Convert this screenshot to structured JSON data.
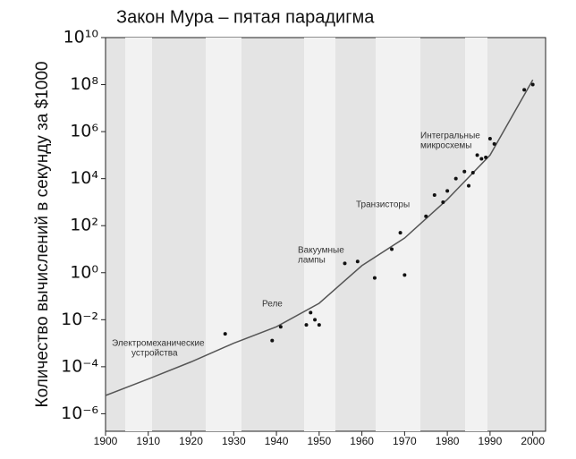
{
  "chart_data": {
    "type": "scatter",
    "title": "Закон Мура – пятая парадигма",
    "y_label": "Количество вычислений в секунду за $1000",
    "log_y": true,
    "xlim": [
      1900,
      2003
    ],
    "ylim": [
      1.8e-07,
      10000000000.0
    ],
    "xticks": [
      1900,
      1910,
      1920,
      1930,
      1940,
      1950,
      1960,
      1970,
      1980,
      1990,
      2000
    ],
    "yticks": [
      {
        "value": 10000000000.0,
        "label": "10¹⁰"
      },
      {
        "value": 100000000.0,
        "label": "10⁸"
      },
      {
        "value": 1000000.0,
        "label": "10⁶"
      },
      {
        "value": 10000.0,
        "label": "10⁴"
      },
      {
        "value": 100,
        "label": "10²"
      },
      {
        "value": 1,
        "label": "10⁰"
      },
      {
        "value": 0.01,
        "label": "10⁻²"
      },
      {
        "value": 0.0001,
        "label": "10⁻⁴"
      },
      {
        "value": 1e-06,
        "label": "10⁻⁶"
      }
    ],
    "color": "#111111",
    "x": [
      1928,
      1939,
      1941,
      1947,
      1948,
      1949,
      1950,
      1956,
      1959,
      1963,
      1967,
      1969,
      1970,
      1975,
      1977,
      1979,
      1980,
      1982,
      1984,
      1985,
      1986,
      1987,
      1988,
      1989,
      1990,
      1991,
      1998,
      2000
    ],
    "values": [
      0.0025,
      0.0013,
      0.005,
      0.006,
      0.02,
      0.01,
      0.006,
      2.5,
      3,
      0.6,
      10,
      50,
      0.8,
      250,
      2000,
      1000,
      3000,
      10000,
      20000,
      5000,
      18000,
      100000,
      70000,
      80000,
      500000,
      300000,
      60000000.0,
      100000000.0
    ],
    "trend": {
      "color": "#555555",
      "x": [
        1900,
        1910,
        1920,
        1930,
        1940,
        1950,
        1960,
        1970,
        1980,
        1990,
        2000
      ],
      "values": [
        6e-06,
        3e-05,
        0.00016,
        0.001,
        0.005,
        0.05,
        2,
        30,
        1300,
        100000,
        160000000.0
      ]
    },
    "annotations": [
      {
        "lines": [
          "Электромеханические",
          "устройства"
        ]
      },
      {
        "lines": [
          "Реле"
        ]
      },
      {
        "lines": [
          "Вакуумные",
          "лампы"
        ]
      },
      {
        "lines": [
          "Транзисторы"
        ]
      },
      {
        "lines": [
          "Интегральные",
          "микросхемы"
        ]
      }
    ]
  }
}
